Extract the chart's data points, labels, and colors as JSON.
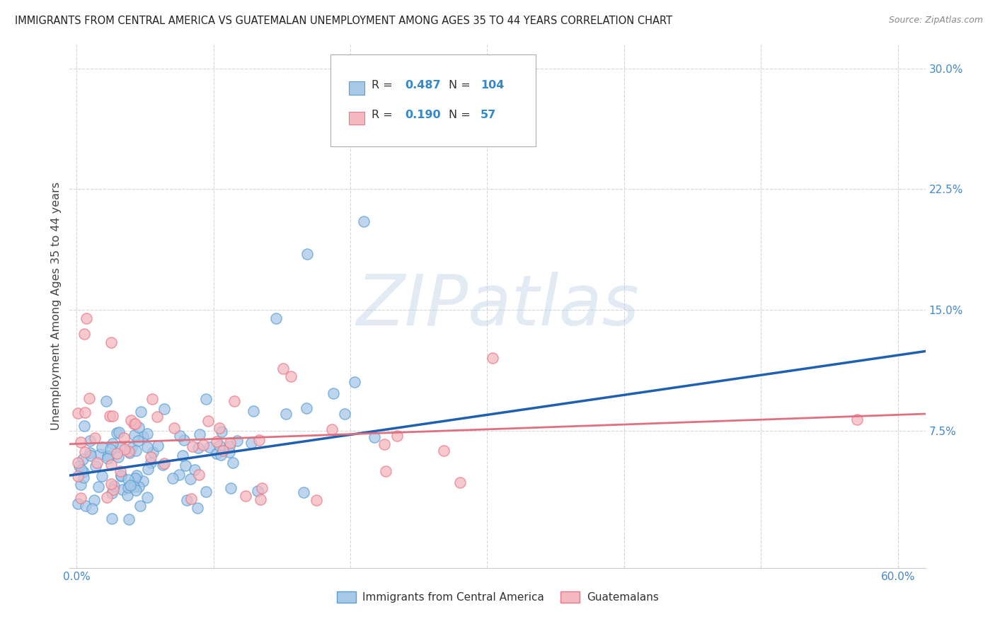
{
  "title": "IMMIGRANTS FROM CENTRAL AMERICA VS GUATEMALAN UNEMPLOYMENT AMONG AGES 35 TO 44 YEARS CORRELATION CHART",
  "source": "Source: ZipAtlas.com",
  "ylabel": "Unemployment Among Ages 35 to 44 years",
  "xlim": [
    -0.005,
    0.62
  ],
  "ylim": [
    -0.01,
    0.315
  ],
  "yticks": [
    0.075,
    0.15,
    0.225,
    0.3
  ],
  "ytick_labels": [
    "7.5%",
    "15.0%",
    "22.5%",
    "30.0%"
  ],
  "xticks": [
    0.0,
    0.1,
    0.2,
    0.3,
    0.4,
    0.5,
    0.6
  ],
  "series1_color": "#a8c8e8",
  "series1_edge": "#5a9fd4",
  "series2_color": "#f4b8c0",
  "series2_edge": "#e87888",
  "line1_color": "#2060b0",
  "line2_color": "#e07080",
  "R1": 0.487,
  "N1": 104,
  "R2": 0.19,
  "N2": 57,
  "legend1": "Immigrants from Central America",
  "legend2": "Guatemalans",
  "watermark": "ZIPatlas",
  "background_color": "#ffffff",
  "grid_color": "#cccccc",
  "title_color": "#222222",
  "source_color": "#888888",
  "ylabel_color": "#444444",
  "tick_label_color": "#4488cc"
}
